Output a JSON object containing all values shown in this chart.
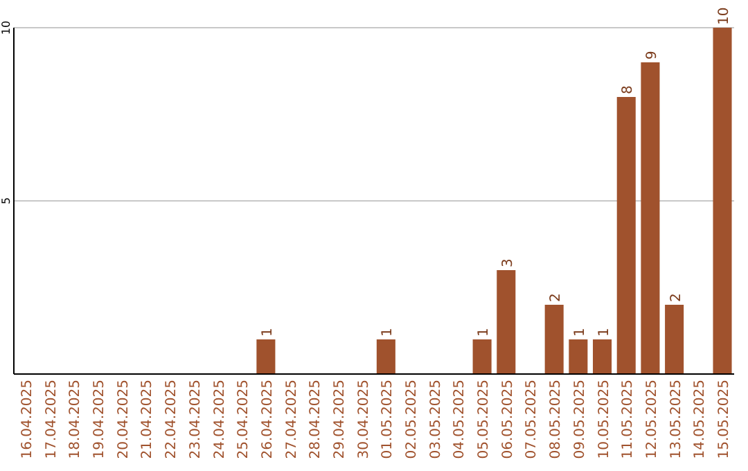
{
  "chart_data": {
    "type": "bar",
    "categories": [
      "16.04.2025",
      "17.04.2025",
      "18.04.2025",
      "19.04.2025",
      "20.04.2025",
      "21.04.2025",
      "22.04.2025",
      "23.04.2025",
      "24.04.2025",
      "25.04.2025",
      "26.04.2025",
      "27.04.2025",
      "28.04.2025",
      "29.04.2025",
      "30.04.2025",
      "01.05.2025",
      "02.05.2025",
      "03.05.2025",
      "04.05.2025",
      "05.05.2025",
      "06.05.2025",
      "07.05.2025",
      "08.05.2025",
      "09.05.2025",
      "10.05.2025",
      "11.05.2025",
      "12.05.2025",
      "13.05.2025",
      "14.05.2025",
      "15.05.2025"
    ],
    "values": [
      0,
      0,
      0,
      0,
      0,
      0,
      0,
      0,
      0,
      0,
      1,
      0,
      0,
      0,
      0,
      1,
      0,
      0,
      0,
      1,
      3,
      0,
      2,
      1,
      1,
      8,
      9,
      2,
      0,
      10
    ],
    "value_labels": [
      null,
      null,
      null,
      null,
      null,
      null,
      null,
      null,
      null,
      null,
      "1",
      null,
      null,
      null,
      null,
      "1",
      null,
      null,
      null,
      "1",
      "3",
      null,
      "2",
      "1",
      "1",
      "8",
      "9",
      "2",
      null,
      "10"
    ],
    "color": "#a0522d",
    "ylim": [
      0,
      10
    ],
    "yticks": [
      5,
      10
    ],
    "grid": "y"
  }
}
